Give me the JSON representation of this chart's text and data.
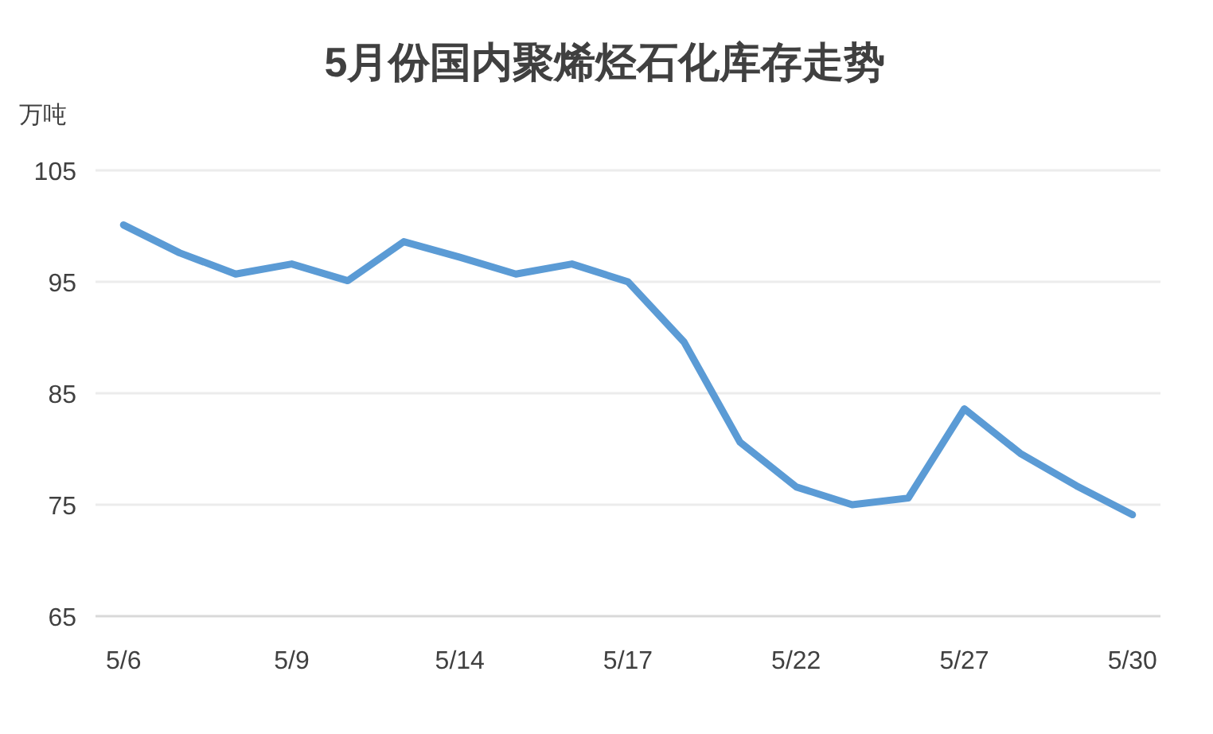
{
  "chart_data": {
    "type": "line",
    "title": "5月份国内聚烯烃石化库存走势",
    "ylabel": "万吨",
    "categories": [
      "5/6",
      null,
      null,
      "5/9",
      null,
      null,
      "5/14",
      null,
      null,
      "5/17",
      null,
      null,
      "5/22",
      null,
      null,
      "5/27",
      null,
      null,
      "5/30"
    ],
    "series": [
      {
        "color": "#5b9bd5",
        "values": [
          100.1,
          97.6,
          95.7,
          96.6,
          95.1,
          98.6,
          97.2,
          95.7,
          96.6,
          95.0,
          89.6,
          80.6,
          76.6,
          75.0,
          75.6,
          83.6,
          79.6,
          76.7,
          74.1
        ]
      }
    ],
    "ylim": [
      65,
      105
    ],
    "yticks": [
      65,
      75,
      85,
      95,
      105
    ],
    "grid": "y",
    "marker": "none",
    "line_style": "solid"
  }
}
